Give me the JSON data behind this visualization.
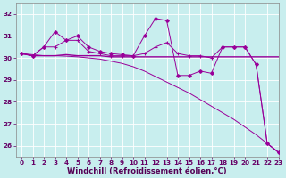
{
  "x": [
    0,
    1,
    2,
    3,
    4,
    5,
    6,
    7,
    8,
    9,
    10,
    11,
    12,
    13,
    14,
    15,
    16,
    17,
    18,
    19,
    20,
    21,
    22,
    23
  ],
  "line_diamond": [
    30.2,
    30.1,
    30.5,
    31.2,
    30.8,
    31.0,
    30.5,
    30.3,
    30.2,
    30.15,
    30.1,
    31.0,
    31.8,
    31.7,
    29.2,
    29.2,
    29.4,
    29.3,
    30.5,
    30.5,
    30.5,
    29.7,
    26.1,
    25.7
  ],
  "line_plus": [
    30.2,
    30.1,
    30.5,
    30.5,
    30.8,
    30.8,
    30.3,
    30.2,
    30.1,
    30.1,
    30.1,
    30.2,
    30.5,
    30.7,
    30.2,
    30.1,
    30.1,
    30.0,
    30.5,
    30.5,
    30.5,
    29.7,
    26.1,
    25.7
  ],
  "line_flat": [
    30.2,
    30.1,
    30.1,
    30.1,
    30.15,
    30.1,
    30.1,
    30.1,
    30.05,
    30.05,
    30.05,
    30.05,
    30.05,
    30.05,
    30.05,
    30.05,
    30.05,
    30.05,
    30.05,
    30.05,
    30.05,
    30.05,
    30.05,
    30.05
  ],
  "line_diag": [
    30.2,
    30.15,
    30.1,
    30.1,
    30.08,
    30.05,
    30.0,
    29.95,
    29.85,
    29.75,
    29.6,
    29.4,
    29.15,
    28.9,
    28.65,
    28.4,
    28.1,
    27.8,
    27.5,
    27.2,
    26.85,
    26.5,
    26.1,
    25.7
  ],
  "color_line": "#990099",
  "color_bg": "#c8eeee",
  "color_grid": "#ffffff",
  "xlabel": "Windchill (Refroidissement éolien,°C)",
  "ylim": [
    25.5,
    32.5
  ],
  "xlim": [
    -0.5,
    23
  ],
  "yticks": [
    26,
    27,
    28,
    29,
    30,
    31,
    32
  ],
  "xticks": [
    0,
    1,
    2,
    3,
    4,
    5,
    6,
    7,
    8,
    9,
    10,
    11,
    12,
    13,
    14,
    15,
    16,
    17,
    18,
    19,
    20,
    21,
    22,
    23
  ],
  "tick_fontsize": 5.2,
  "xlabel_fontsize": 6.0
}
